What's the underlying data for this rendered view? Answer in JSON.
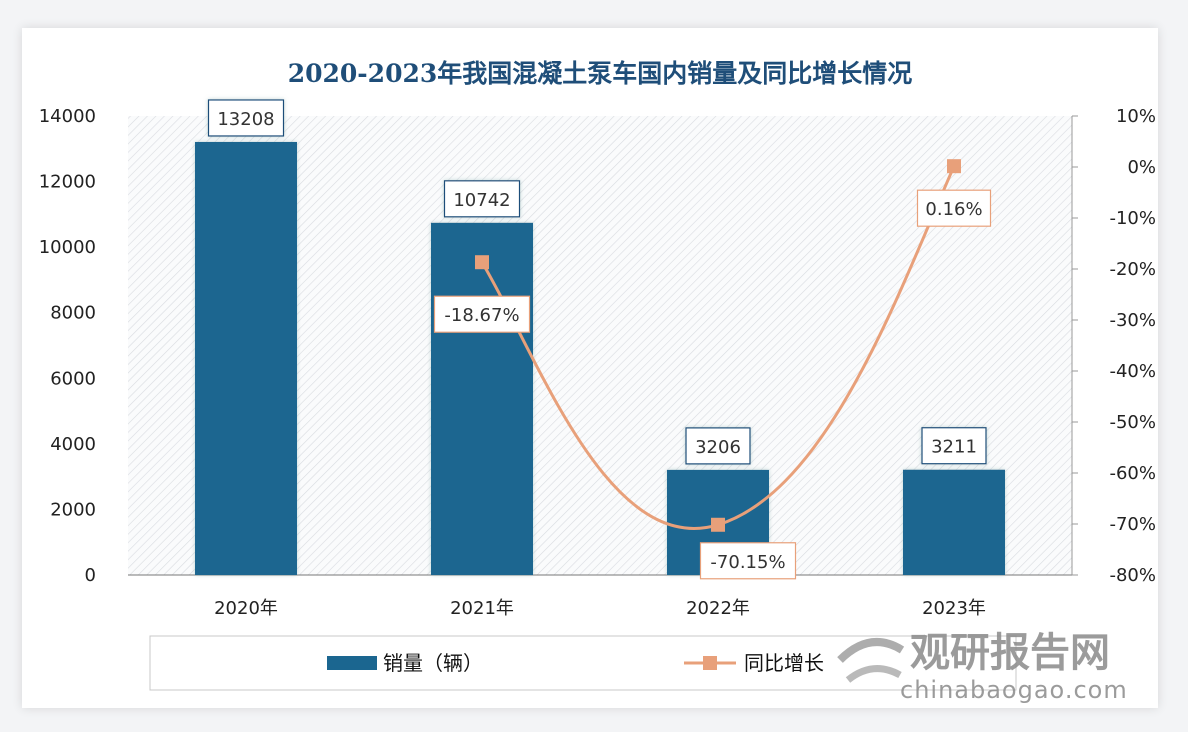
{
  "chart_data": {
    "type": "bar+line",
    "title": "2020-2023年我国混凝土泵车国内销量及同比增长情况",
    "categories": [
      "2020年",
      "2021年",
      "2022年",
      "2023年"
    ],
    "series": [
      {
        "name": "销量（辆）",
        "type": "bar",
        "axis": "left",
        "values": [
          13208,
          10742,
          3206,
          3211
        ],
        "labels": [
          "13208",
          "10742",
          "3206",
          "3211"
        ],
        "color": "#1b6690"
      },
      {
        "name": "同比增长",
        "type": "line",
        "axis": "right",
        "values": [
          null,
          -18.67,
          -70.15,
          0.16
        ],
        "labels": [
          "",
          "-18.67%",
          "-70.15%",
          "0.16%"
        ],
        "color": "#e8a07a"
      }
    ],
    "left_axis": {
      "ylim": [
        0,
        14000
      ],
      "ticks": [
        "0",
        "2000",
        "4000",
        "6000",
        "8000",
        "10000",
        "12000",
        "14000"
      ]
    },
    "right_axis": {
      "ylim": [
        -80,
        10
      ],
      "ticks": [
        "-80%",
        "-70%",
        "-60%",
        "-50%",
        "-40%",
        "-30%",
        "-20%",
        "-10%",
        "0%",
        "10%"
      ]
    },
    "legend": "bottom",
    "grid": false
  },
  "watermark": {
    "name": "观研报告网",
    "url": "chinabaogao.com"
  }
}
